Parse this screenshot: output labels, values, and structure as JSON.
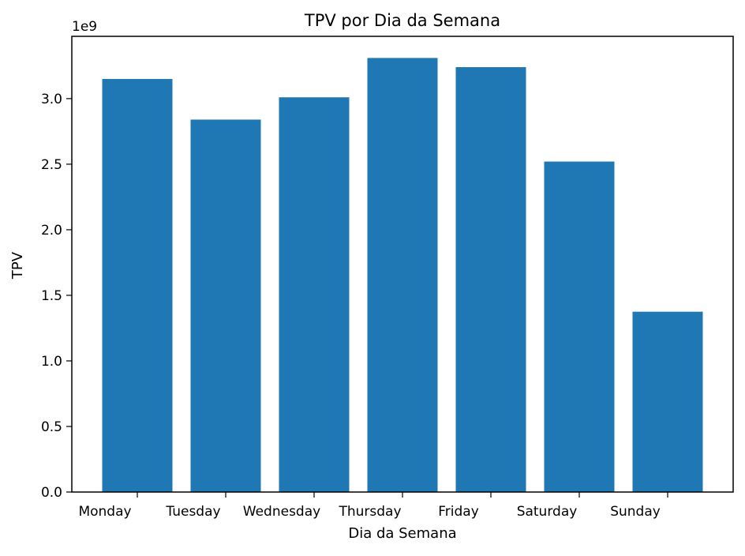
{
  "chart_data": {
    "type": "bar",
    "title": "TPV por Dia da Semana",
    "xlabel": "Dia da Semana",
    "ylabel": "TPV",
    "offset_label": "1e9",
    "categories": [
      "Monday",
      "Tuesday",
      "Wednesday",
      "Thursday",
      "Friday",
      "Saturday",
      "Sunday"
    ],
    "values": [
      3150000000,
      2840000000,
      3010000000,
      3310000000,
      3240000000,
      2520000000,
      1375000000
    ],
    "ylim": [
      0,
      3475000000
    ],
    "yticks": [
      0,
      500000000,
      1000000000,
      1500000000,
      2000000000,
      2500000000,
      3000000000
    ],
    "ytick_labels": [
      "0.0",
      "0.5",
      "1.0",
      "1.5",
      "2.0",
      "2.5",
      "3.0"
    ],
    "grid": false,
    "bar_color": "#1f77b4"
  }
}
